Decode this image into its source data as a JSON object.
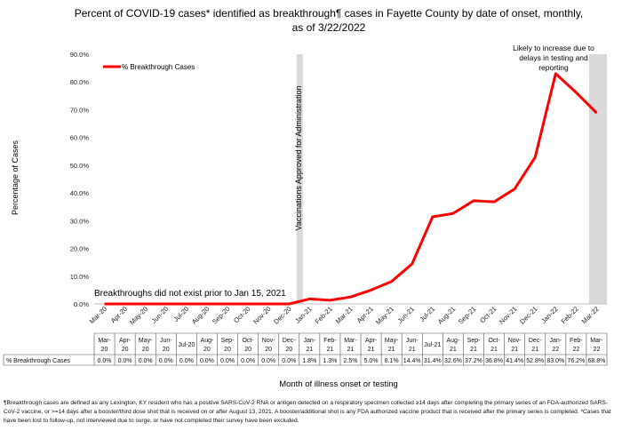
{
  "chart_data": {
    "type": "line",
    "title_line1": "Percent of COVID-19 cases* identified as breakthrough¶ cases in Fayette County by date of onset, monthly,",
    "title_line2": "as of 3/22/2022",
    "xlabel": "Month of illness onset or testing",
    "ylabel": "Percentage of Cases",
    "ylim": [
      0,
      90
    ],
    "yticks": [
      "0.0%",
      "10.0%",
      "20.0%",
      "30.0%",
      "40.0%",
      "50.0%",
      "60.0%",
      "70.0%",
      "80.0%",
      "90.0%"
    ],
    "grid": false,
    "legend_position": "top-left",
    "series": [
      {
        "name": "% Breakthrough Cases",
        "color": "#ff0000",
        "values": [
          0.0,
          0.0,
          0.0,
          0.0,
          0.0,
          0.0,
          0.0,
          0.0,
          0.0,
          0.0,
          1.8,
          1.3,
          2.5,
          5.0,
          8.1,
          14.4,
          31.4,
          32.6,
          37.2,
          36.8,
          41.4,
          52.8,
          83.0,
          76.2,
          68.8
        ]
      }
    ],
    "categories": [
      "Mar-20",
      "Apr-20",
      "May-20",
      "Jun-20",
      "Jul-20",
      "Aug-20",
      "Sep-20",
      "Oct-20",
      "Nov-20",
      "Dec-20",
      "Jan-21",
      "Feb-21",
      "Mar-21",
      "Apr-21",
      "May-21",
      "Jun-21",
      "Jul-21",
      "Aug-21",
      "Sep-21",
      "Oct-21",
      "Nov-21",
      "Dec-21",
      "Jan-22",
      "Feb-22",
      "Mar-22"
    ],
    "table": {
      "row_label": "% Breakthrough Cases",
      "header_line1": [
        "Mar-",
        "Apr-",
        "May-",
        "Jun-",
        "Jul-20",
        "Aug-",
        "Sep-",
        "Oct-",
        "Nov-",
        "Dec-",
        "Jan-",
        "Feb-",
        "Mar-",
        "Apr-",
        "May-",
        "Jun-",
        "Jul-21",
        "Aug-",
        "Sep-",
        "Oct-",
        "Nov-",
        "Dec-",
        "Jan-",
        "Feb-",
        "Mar-"
      ],
      "header_line2": [
        "20",
        "20",
        "20",
        "20",
        "",
        "20",
        "20",
        "20",
        "20",
        "20",
        "21",
        "21",
        "21",
        "21",
        "21",
        "21",
        "",
        "21",
        "21",
        "21",
        "21",
        "21",
        "22",
        "22",
        "22"
      ],
      "cells": [
        "0.0%",
        "0.0%",
        "0.0%",
        "0.0%",
        "0.0%",
        "0.0%",
        "0.0%",
        "0.0%",
        "0.0%",
        "0.0%",
        "1.8%",
        "1.3%",
        "2.5%",
        "5.0%",
        "8.1%",
        "14.4%",
        "31.4%",
        "32.6%",
        "37.2%",
        "36.8%",
        "41.4%",
        "52.8%",
        "83.0%",
        "76.2%",
        "68.8%"
      ]
    },
    "annotations": {
      "vaccination": "Vaccinations Approved for Administration",
      "pre_vaccine": "Breakthroughs did not exist prior to Jan 15, 2021",
      "recent_line1": "Likely to increase due to",
      "recent_line2": "delays in testing and",
      "recent_line3": "reporting"
    },
    "shade_color": "#d9d9d9"
  },
  "footnote": "¶Breakthrough cases are defined as any Lexington, KY resident who has a positive SARS-CoV-2 RNA or antigen detected on a respiratory specimen collected ≥14 days after completing the primary series of an FDA-authorized SARS-CoV-2 vaccine, or >=14 days after a booster/third dose shot that is received on or after August 13, 2021.  A booster/additional shot is any FDA authorized vaccine product that is received after the primary series is completed. *Cases that have been lost to follow-up, not interviewed due to surge, or have not completed their survey have been excluded."
}
